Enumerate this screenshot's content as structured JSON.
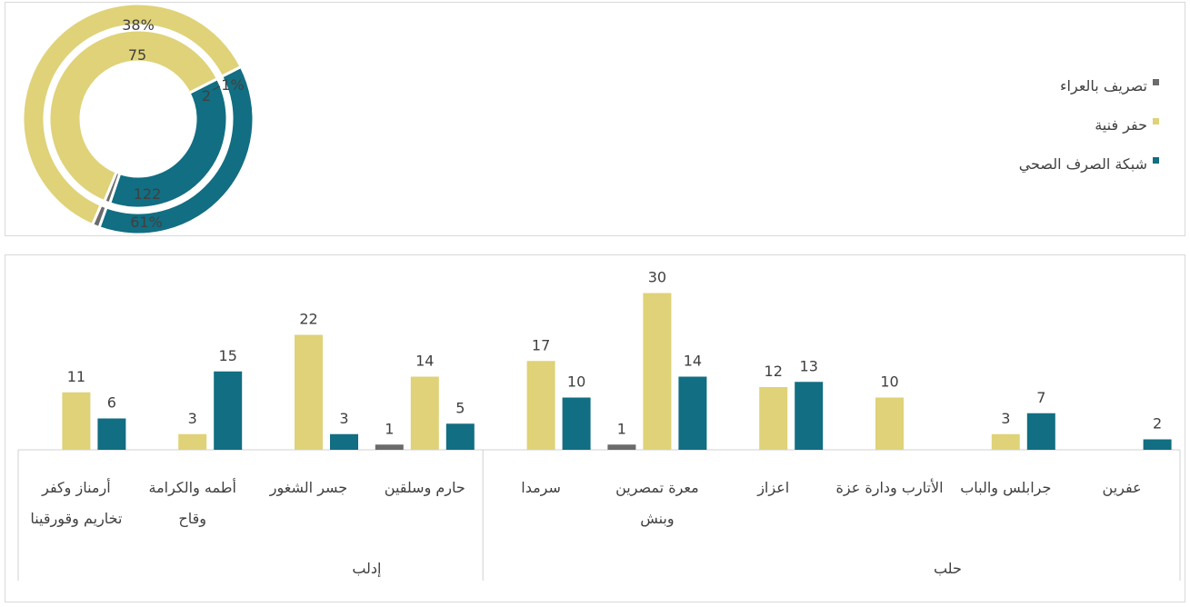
{
  "chart_data": [
    {
      "type": "pie",
      "variant": "double-donut",
      "legend_position": "right",
      "legend": [
        {
          "label": "تصريف بالعراء",
          "color": "#6b6b6b"
        },
        {
          "label": "حفر فنية",
          "color": "#dfd278"
        },
        {
          "label": "شبكة الصرف الصحي",
          "color": "#126e82"
        }
      ],
      "rings": [
        {
          "ring": "outer",
          "slices": [
            {
              "series": "شبكة الصرف الصحي",
              "label": "38%",
              "value": 38
            },
            {
              "series": "تصريف بالعراء",
              "label": "1%",
              "value": 1
            },
            {
              "series": "حفر فنية",
              "label": "61%",
              "value": 61
            }
          ]
        },
        {
          "ring": "inner",
          "slices": [
            {
              "series": "شبكة الصرف الصحي",
              "label": "75",
              "value": 75
            },
            {
              "series": "تصريف بالعراء",
              "label": "2",
              "value": 2
            },
            {
              "series": "حفر فنية",
              "label": "122",
              "value": 122
            }
          ]
        }
      ]
    },
    {
      "type": "bar",
      "ylim": [
        0,
        32
      ],
      "grid": false,
      "series": [
        {
          "name": "تصريف بالعراء",
          "color": "#6b6b6b"
        },
        {
          "name": "حفر فنية",
          "color": "#dfd278"
        },
        {
          "name": "شبكة الصرف الصحي",
          "color": "#126e82"
        }
      ],
      "groups": [
        {
          "label": "حلب",
          "categories": [
            {
              "label": "عفرين",
              "lines": [
                "عفرين"
              ],
              "values": {
                "تصريف بالعراء": null,
                "حفر فنية": null,
                "شبكة الصرف الصحي": 2
              }
            },
            {
              "label": "جرابلس والباب",
              "lines": [
                "جرابلس والباب"
              ],
              "values": {
                "تصريف بالعراء": null,
                "حفر فنية": 3,
                "شبكة الصرف الصحي": 7
              }
            },
            {
              "label": "الأتارب ودارة عزة",
              "lines": [
                "الأتارب ودارة عزة"
              ],
              "values": {
                "تصريف بالعراء": null,
                "حفر فنية": 10,
                "شبكة الصرف الصحي": null
              }
            },
            {
              "label": "اعزاز",
              "lines": [
                "اعزاز"
              ],
              "values": {
                "تصريف بالعراء": null,
                "حفر فنية": 12,
                "شبكة الصرف الصحي": 13
              }
            }
          ]
        },
        {
          "label": "إدلب",
          "categories": [
            {
              "label": "معرة تمصرين وبنش",
              "lines": [
                "معرة تمصرين",
                "وبنش"
              ],
              "values": {
                "تصريف بالعراء": 1,
                "حفر فنية": 30,
                "شبكة الصرف الصحي": 14
              }
            },
            {
              "label": "سرمدا",
              "lines": [
                "سرمدا"
              ],
              "values": {
                "تصريف بالعراء": null,
                "حفر فنية": 17,
                "شبكة الصرف الصحي": 10
              }
            },
            {
              "label": "حارم وسلقين",
              "lines": [
                "حارم وسلقين"
              ],
              "values": {
                "تصريف بالعراء": 1,
                "حفر فنية": 14,
                "شبكة الصرف الصحي": 5
              }
            },
            {
              "label": "جسر الشغور",
              "lines": [
                "جسر الشغور"
              ],
              "values": {
                "تصريف بالعراء": null,
                "حفر فنية": 22,
                "شبكة الصرف الصحي": 3
              }
            },
            {
              "label": "أطمه والكرامة وقاح",
              "lines": [
                "أطمه والكرامة",
                "وقاح"
              ],
              "values": {
                "تصريف بالعراء": null,
                "حفر فنية": 3,
                "شبكة الصرف الصحي": 15
              }
            },
            {
              "label": "أرمناز وكفر تخاريم وقورقينا",
              "lines": [
                "أرمناز وكفر",
                "تخاريم وقورقينا"
              ],
              "values": {
                "تصريف بالعراء": null,
                "حفر فنية": 11,
                "شبكة الصرف الصحي": 6
              }
            }
          ]
        }
      ]
    }
  ]
}
